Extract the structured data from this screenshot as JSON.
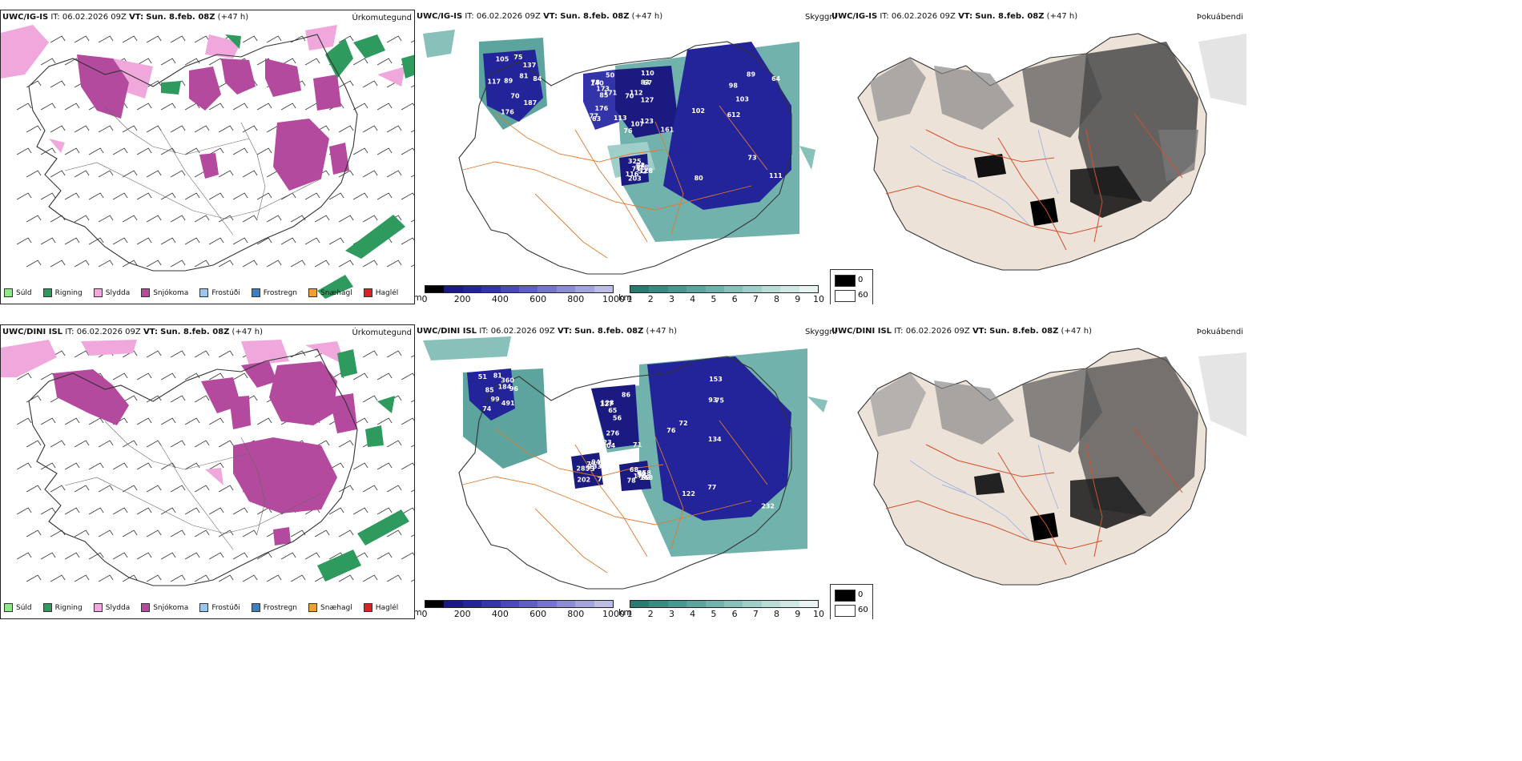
{
  "rows": [
    {
      "model": "UWC/IG-IS",
      "it_label": "IT:",
      "it_value": "06.02.2026 09Z",
      "vt_label": "VT:",
      "vt_value": "Sun. 8.feb. 08Z",
      "lead": "(+47 h)"
    },
    {
      "model": "UWC/DINI ISL",
      "it_label": "IT:",
      "it_value": "06.02.2026 09Z",
      "vt_label": "VT:",
      "vt_value": "Sun. 8.feb. 08Z",
      "lead": "(+47 h)"
    }
  ],
  "panel_tags": {
    "precip": "Úrkomutegund",
    "visibility": "Skyggni",
    "cloud": "Þokuábendi"
  },
  "precip_legend": [
    {
      "label": "Súld",
      "color": "#8ee88a"
    },
    {
      "label": "Rigning",
      "color": "#2e9a5e"
    },
    {
      "label": "Slydda",
      "color": "#f0a8dc"
    },
    {
      "label": "Snjókoma",
      "color": "#b34a9e"
    },
    {
      "label": "Frostúði",
      "color": "#9cc6ee"
    },
    {
      "label": "Frostregn",
      "color": "#3d7fc4"
    },
    {
      "label": "Snæhagl",
      "color": "#f0a030"
    },
    {
      "label": "Haglél",
      "color": "#e02020"
    }
  ],
  "vis_m": {
    "unit": "m",
    "ticks": [
      "0",
      "200",
      "400",
      "600",
      "800",
      "1000"
    ],
    "colors": [
      "#000000",
      "#1a1a80",
      "#23239a",
      "#3434aa",
      "#4a4ab4",
      "#5f5fbe",
      "#7676c8",
      "#8c8cd2",
      "#a4a4dc",
      "#bcbce6"
    ]
  },
  "vis_km": {
    "unit": "km",
    "ticks": [
      "1",
      "2",
      "3",
      "4",
      "5",
      "6",
      "7",
      "8",
      "9",
      "10"
    ],
    "colors": [
      "#2a7a72",
      "#3a8a82",
      "#4a9690",
      "#5ea49e",
      "#72b2ac",
      "#88c0ba",
      "#a0cec8",
      "#b8dcd6",
      "#d0e8e4",
      "#e8f4f2"
    ]
  },
  "cloud_legend": [
    {
      "label": "0",
      "color": "#000000"
    },
    {
      "label": "60",
      "color": "#ffffff"
    }
  ],
  "visibility_values_row1": [
    "70",
    "140",
    "127",
    "80",
    "54",
    "176",
    "50",
    "67",
    "89",
    "128",
    "105",
    "113",
    "70",
    "64",
    "77",
    "81",
    "63",
    "83",
    "103",
    "116",
    "89",
    "77",
    "107",
    "98",
    "32",
    "187",
    "78",
    "110",
    "102",
    "52",
    "84",
    "85",
    "123",
    "612",
    "325",
    "137",
    "176",
    "161",
    "111",
    "128",
    "75",
    "173",
    "112",
    "73",
    "203",
    "117",
    "171",
    "76"
  ],
  "visibility_values_row2": [
    "99",
    "127",
    "134",
    "202",
    "85",
    "74",
    "86",
    "75",
    "94",
    "59",
    "51",
    "71",
    "76",
    "64",
    "175",
    "184",
    "104",
    "93",
    "133",
    "78",
    "85",
    "223",
    "122",
    "79",
    "258",
    "491",
    "128",
    "153",
    "285",
    "168",
    "96",
    "56",
    "77",
    "73",
    "68",
    "360",
    "276",
    "232",
    "79",
    "68",
    "81",
    "65",
    "72"
  ]
}
